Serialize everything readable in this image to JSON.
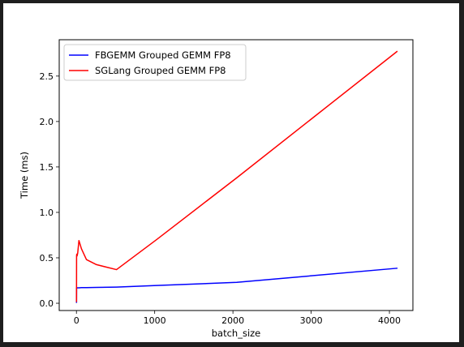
{
  "chart_data": {
    "type": "line",
    "title": "",
    "xlabel": "batch_size",
    "ylabel": "Time (ms)",
    "xlim": [
      -220,
      4300
    ],
    "ylim": [
      -0.08,
      2.9
    ],
    "x_ticks": [
      0,
      1000,
      2000,
      3000,
      4000
    ],
    "x_tick_labels": [
      "0",
      "1000",
      "2000",
      "3000",
      "4000"
    ],
    "y_ticks": [
      0.0,
      0.5,
      1.0,
      1.5,
      2.0,
      2.5
    ],
    "y_tick_labels": [
      "0.0",
      "0.5",
      "1.0",
      "1.5",
      "2.0",
      "2.5"
    ],
    "grid": false,
    "legend_position": "top-left",
    "series": [
      {
        "name": "FBGEMM Grouped GEMM FP8",
        "color": "#0000ff",
        "x": [
          1,
          2,
          4,
          8,
          16,
          32,
          64,
          128,
          256,
          512,
          1024,
          2048,
          4096
        ],
        "y": [
          0.01,
          0.17,
          0.17,
          0.17,
          0.17,
          0.17,
          0.172,
          0.172,
          0.174,
          0.178,
          0.195,
          0.23,
          0.385
        ]
      },
      {
        "name": "SGLang Grouped GEMM FP8",
        "color": "#ff0000",
        "x": [
          1,
          2,
          4,
          8,
          16,
          32,
          64,
          128,
          256,
          512,
          1024,
          2048,
          4096
        ],
        "y": [
          0.02,
          0.52,
          0.54,
          0.52,
          0.55,
          0.69,
          0.6,
          0.48,
          0.425,
          0.37,
          0.7,
          1.38,
          2.77
        ]
      }
    ]
  }
}
